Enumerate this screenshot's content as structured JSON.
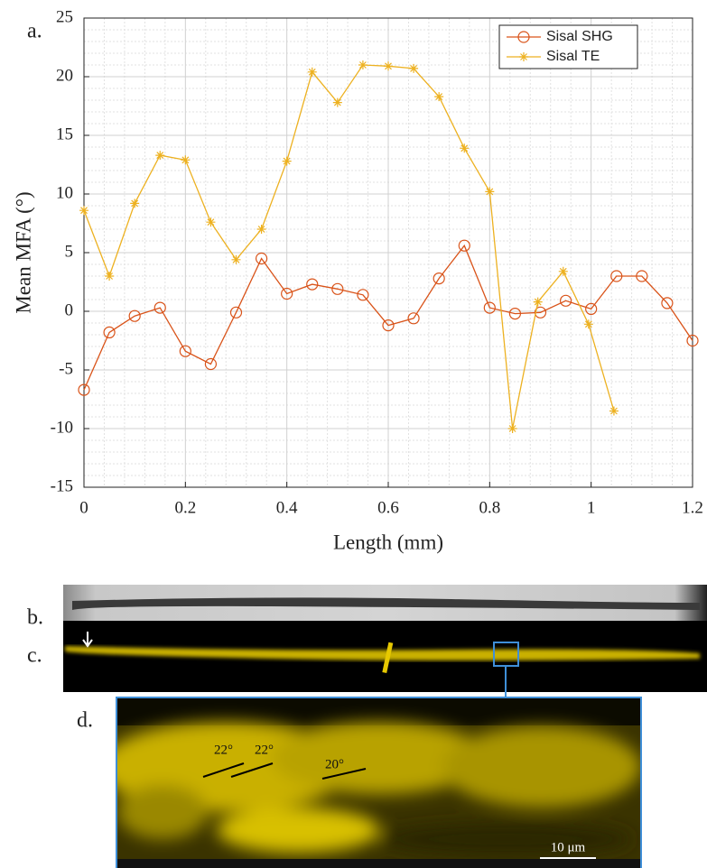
{
  "chart_data": {
    "type": "line",
    "xlabel": "Length (mm)",
    "ylabel": "Mean MFA (°)",
    "xlim": [
      0,
      1.2
    ],
    "xticks": [
      0,
      0.2,
      0.4,
      0.6,
      0.8,
      1,
      1.2
    ],
    "ylim": [
      -15,
      25
    ],
    "yticks": [
      -15,
      -10,
      -5,
      0,
      5,
      10,
      15,
      20,
      25
    ],
    "grid": true,
    "minor_grid": true,
    "legend_position": "northeast",
    "series": [
      {
        "name": "Sisal SHG",
        "color": "#d95319",
        "marker": "circle",
        "x": [
          0,
          0.05,
          0.1,
          0.15,
          0.2,
          0.25,
          0.3,
          0.35,
          0.4,
          0.45,
          0.5,
          0.55,
          0.6,
          0.65,
          0.7,
          0.75,
          0.8,
          0.85,
          0.9,
          0.95,
          1,
          1.05,
          1.1,
          1.15,
          1.2
        ],
        "values": [
          -6.7,
          -1.8,
          -0.4,
          0.3,
          -3.4,
          -4.5,
          -0.1,
          4.5,
          1.5,
          2.3,
          1.9,
          1.4,
          -1.2,
          -0.6,
          2.8,
          5.6,
          0.3,
          -0.2,
          -0.1,
          0.9,
          0.2,
          3.0,
          3.0,
          0.7,
          -2.5
        ]
      },
      {
        "name": "Sisal TE",
        "color": "#edb120",
        "marker": "asterisk",
        "x": [
          0,
          0.05,
          0.1,
          0.15,
          0.2,
          0.25,
          0.3,
          0.35,
          0.4,
          0.45,
          0.5,
          0.55,
          0.6,
          0.65,
          0.7,
          0.75,
          0.8,
          0.845,
          0.895,
          0.945,
          0.995,
          1.045
        ],
        "values": [
          8.6,
          3.0,
          9.2,
          13.3,
          12.9,
          7.6,
          4.4,
          7.0,
          12.8,
          20.4,
          17.8,
          21.0,
          20.9,
          20.7,
          18.3,
          13.9,
          10.2,
          -10.0,
          0.8,
          3.4,
          -1.1,
          -8.5
        ]
      }
    ]
  },
  "panels": {
    "a": "a.",
    "b": "b.",
    "c": "c.",
    "d": "d."
  },
  "annotations": [
    "22°",
    "22°",
    "20°"
  ],
  "scale_bar": "10 μm"
}
